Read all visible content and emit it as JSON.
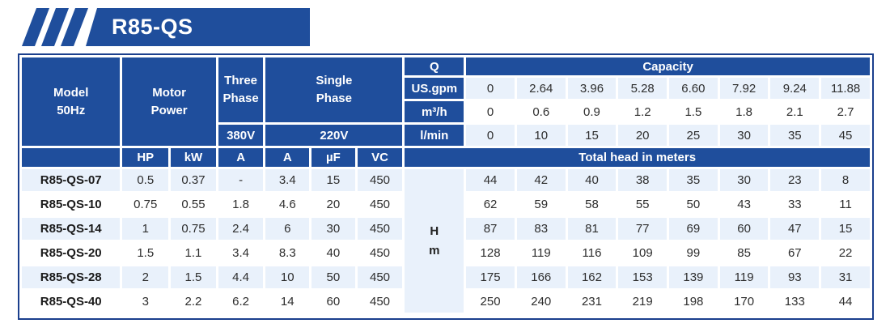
{
  "banner": {
    "title": "R85-QS"
  },
  "colors": {
    "blue": "#1f4e9c",
    "navy_border": "#1b3f8d",
    "alt_row": "#e9f1fb"
  },
  "table": {
    "header": {
      "model": "Model\n50Hz",
      "motor_power": "Motor\nPower",
      "three_phase": "Three\nPhase",
      "three_phase_voltage": "380V",
      "single_phase": "Single\nPhase",
      "single_phase_voltage": "220V",
      "q": "Q",
      "capacity": "Capacity",
      "flow_rows": [
        {
          "unit": "US.gpm",
          "values": [
            "0",
            "2.64",
            "3.96",
            "5.28",
            "6.60",
            "7.92",
            "9.24",
            "11.88"
          ]
        },
        {
          "unit": "m³/h",
          "values": [
            "0",
            "0.6",
            "0.9",
            "1.2",
            "1.5",
            "1.8",
            "2.1",
            "2.7"
          ]
        },
        {
          "unit": "l/min",
          "values": [
            "0",
            "10",
            "15",
            "20",
            "25",
            "30",
            "35",
            "45"
          ]
        }
      ],
      "spec_columns": [
        "HP",
        "kW",
        "A",
        "A",
        "µF",
        "VC"
      ],
      "total_head": "Total head in meters",
      "head_unit": "H\nm"
    },
    "rows": [
      {
        "model": "R85-QS-07",
        "specs": [
          "0.5",
          "0.37",
          "-",
          "3.4",
          "15",
          "450"
        ],
        "head": [
          "44",
          "42",
          "40",
          "38",
          "35",
          "30",
          "23",
          "8"
        ]
      },
      {
        "model": "R85-QS-10",
        "specs": [
          "0.75",
          "0.55",
          "1.8",
          "4.6",
          "20",
          "450"
        ],
        "head": [
          "62",
          "59",
          "58",
          "55",
          "50",
          "43",
          "33",
          "11"
        ]
      },
      {
        "model": "R85-QS-14",
        "specs": [
          "1",
          "0.75",
          "2.4",
          "6",
          "30",
          "450"
        ],
        "head": [
          "87",
          "83",
          "81",
          "77",
          "69",
          "60",
          "47",
          "15"
        ]
      },
      {
        "model": "R85-QS-20",
        "specs": [
          "1.5",
          "1.1",
          "3.4",
          "8.3",
          "40",
          "450"
        ],
        "head": [
          "128",
          "119",
          "116",
          "109",
          "99",
          "85",
          "67",
          "22"
        ]
      },
      {
        "model": "R85-QS-28",
        "specs": [
          "2",
          "1.5",
          "4.4",
          "10",
          "50",
          "450"
        ],
        "head": [
          "175",
          "166",
          "162",
          "153",
          "139",
          "119",
          "93",
          "31"
        ]
      },
      {
        "model": "R85-QS-40",
        "specs": [
          "3",
          "2.2",
          "6.2",
          "14",
          "60",
          "450"
        ],
        "head": [
          "250",
          "240",
          "231",
          "219",
          "198",
          "170",
          "133",
          "44"
        ]
      }
    ]
  }
}
